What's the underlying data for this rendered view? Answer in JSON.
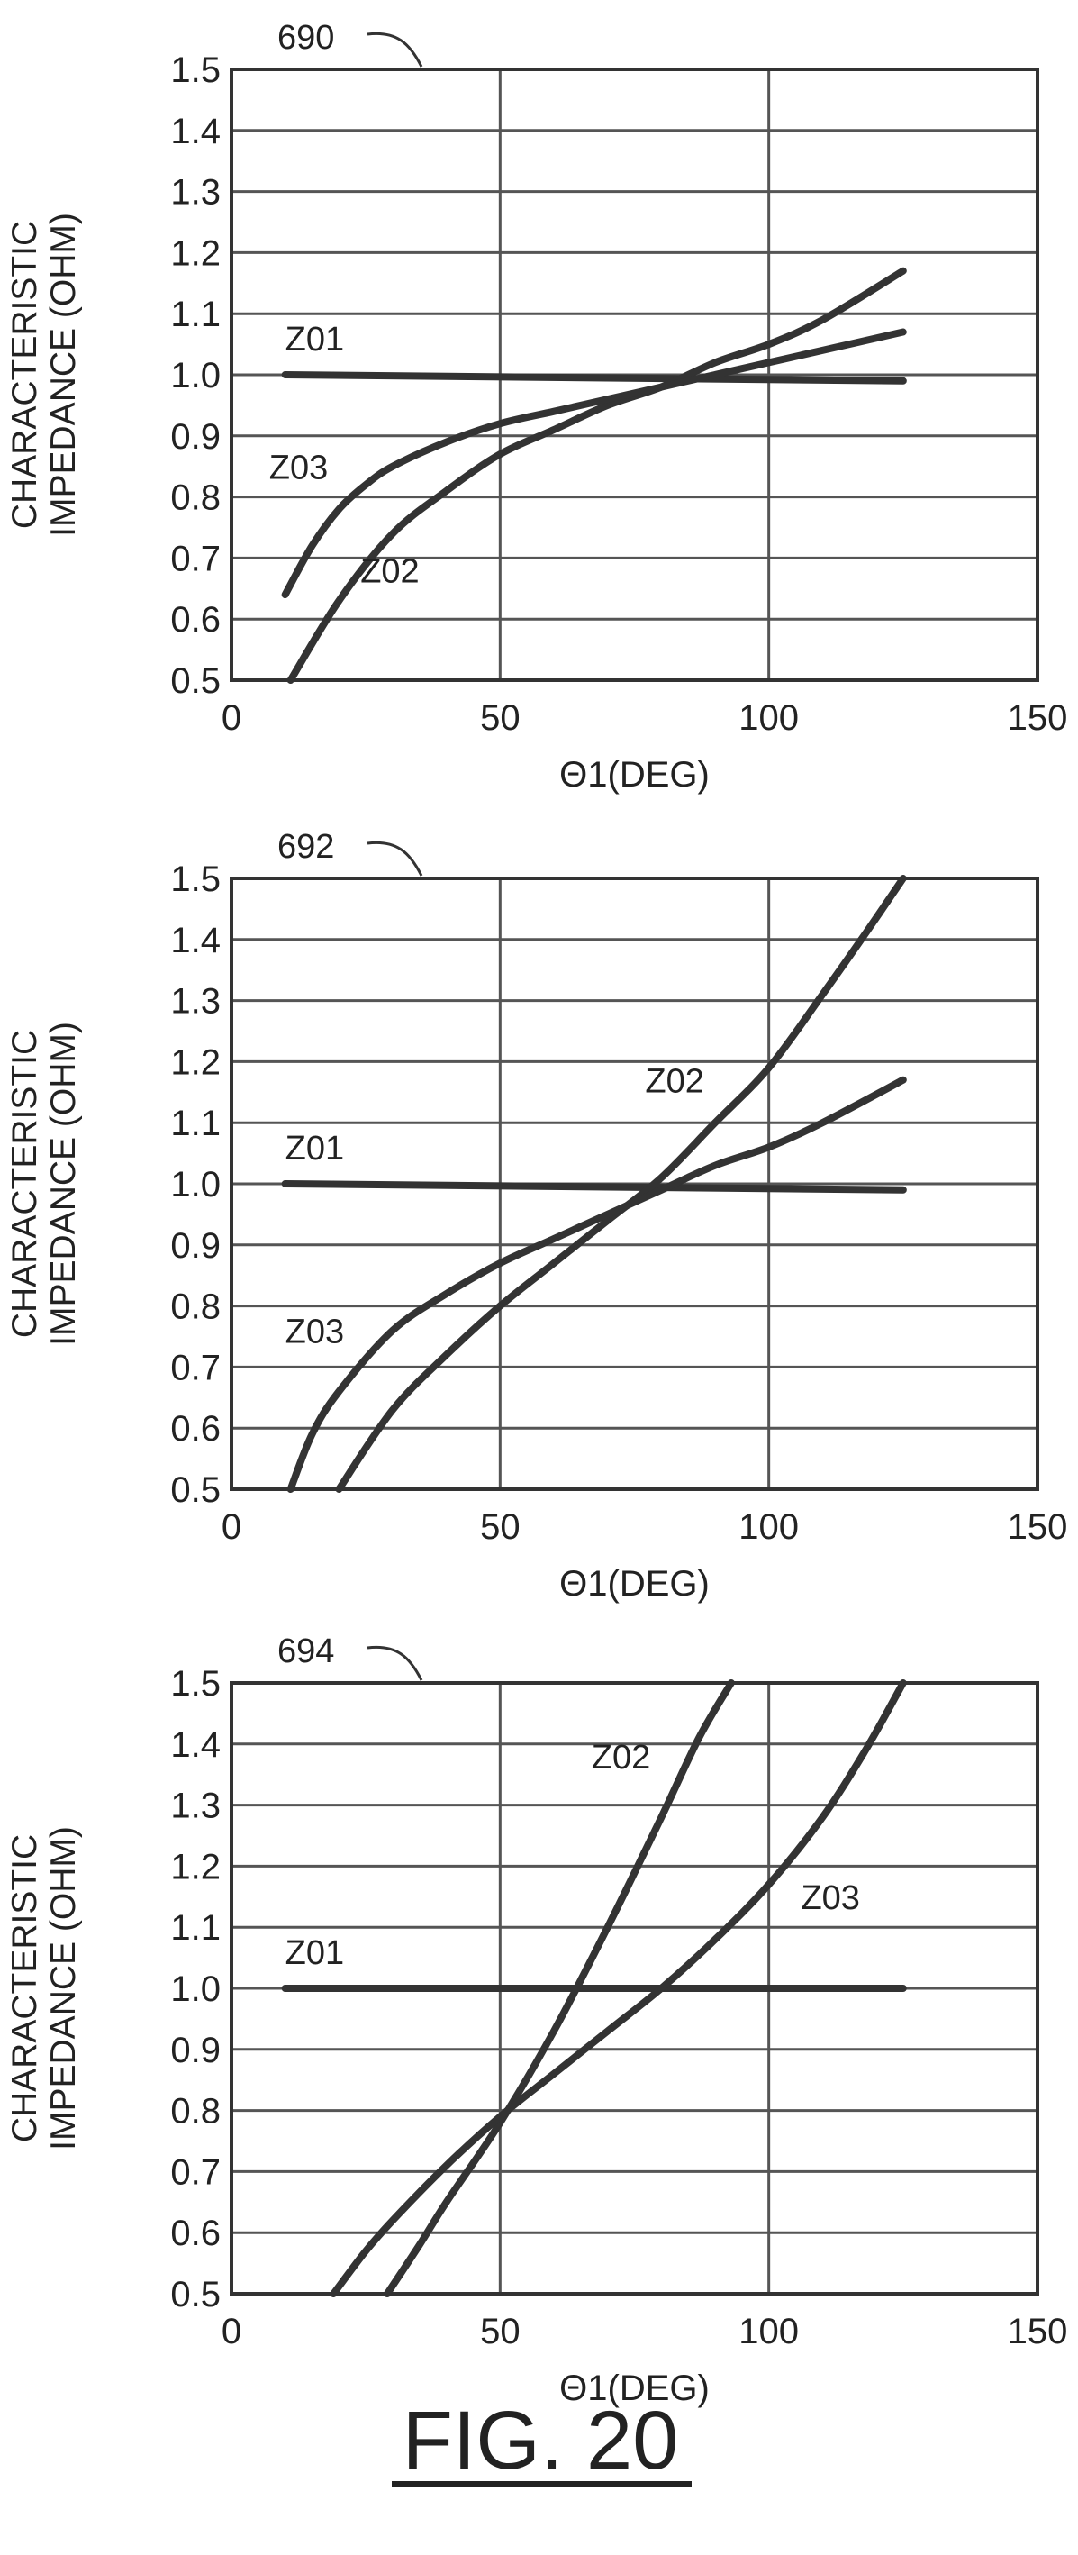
{
  "figure": {
    "title": "FIG. 20"
  },
  "chart_data": [
    {
      "type": "line",
      "title": "690",
      "xlabel": "Θ1(DEG)",
      "ylabel": "CHARACTERISTIC IMPEDANCE (OHM)",
      "xlim": [
        0,
        150
      ],
      "ylim": [
        0.5,
        1.5
      ],
      "xticks": [
        "0",
        "50",
        "100",
        "150"
      ],
      "yticks": [
        "0.5",
        "0.6",
        "0.7",
        "0.8",
        "0.9",
        "1.0",
        "1.1",
        "1.2",
        "1.3",
        "1.4",
        "1.5"
      ],
      "grid": true,
      "series": [
        {
          "name": "Z01",
          "x": [
            10,
            125
          ],
          "values": [
            1.0,
            0.99
          ]
        },
        {
          "name": "Z02",
          "x": [
            11,
            20,
            30,
            40,
            50,
            60,
            70,
            80,
            90,
            100,
            110,
            125
          ],
          "values": [
            0.5,
            0.63,
            0.74,
            0.81,
            0.87,
            0.91,
            0.95,
            0.98,
            1.02,
            1.05,
            1.09,
            1.17
          ]
        },
        {
          "name": "Z03",
          "x": [
            10,
            15,
            20,
            25,
            30,
            40,
            50,
            60,
            70,
            80,
            90,
            100,
            110,
            125
          ],
          "values": [
            0.64,
            0.72,
            0.78,
            0.82,
            0.85,
            0.89,
            0.92,
            0.94,
            0.96,
            0.98,
            1.0,
            1.02,
            1.04,
            1.07
          ]
        }
      ]
    },
    {
      "type": "line",
      "title": "692",
      "xlabel": "Θ1(DEG)",
      "ylabel": "CHARACTERISTIC IMPEDANCE (OHM)",
      "xlim": [
        0,
        150
      ],
      "ylim": [
        0.5,
        1.5
      ],
      "xticks": [
        "0",
        "50",
        "100",
        "150"
      ],
      "yticks": [
        "0.5",
        "0.6",
        "0.7",
        "0.8",
        "0.9",
        "1.0",
        "1.1",
        "1.2",
        "1.3",
        "1.4",
        "1.5"
      ],
      "grid": true,
      "series": [
        {
          "name": "Z01",
          "x": [
            10,
            125
          ],
          "values": [
            1.0,
            0.99
          ]
        },
        {
          "name": "Z02",
          "x": [
            20,
            30,
            40,
            50,
            60,
            70,
            80,
            90,
            100,
            110,
            118,
            125
          ],
          "values": [
            0.5,
            0.63,
            0.72,
            0.8,
            0.87,
            0.94,
            1.01,
            1.1,
            1.19,
            1.31,
            1.41,
            1.5
          ]
        },
        {
          "name": "Z03",
          "x": [
            11,
            15,
            20,
            30,
            40,
            50,
            60,
            70,
            80,
            90,
            100,
            110,
            125
          ],
          "values": [
            0.5,
            0.59,
            0.66,
            0.76,
            0.82,
            0.87,
            0.91,
            0.95,
            0.99,
            1.03,
            1.06,
            1.1,
            1.17
          ]
        }
      ]
    },
    {
      "type": "line",
      "title": "694",
      "xlabel": "Θ1(DEG)",
      "ylabel": "CHARACTERISTIC IMPEDANCE (OHM)",
      "xlim": [
        0,
        150
      ],
      "ylim": [
        0.5,
        1.5
      ],
      "xticks": [
        "0",
        "50",
        "100",
        "150"
      ],
      "yticks": [
        "0.5",
        "0.6",
        "0.7",
        "0.8",
        "0.9",
        "1.0",
        "1.1",
        "1.2",
        "1.3",
        "1.4",
        "1.5"
      ],
      "grid": true,
      "series": [
        {
          "name": "Z01",
          "x": [
            10,
            125
          ],
          "values": [
            1.0,
            1.0
          ]
        },
        {
          "name": "Z02",
          "x": [
            29,
            35,
            40,
            50,
            60,
            70,
            80,
            87,
            93
          ],
          "values": [
            0.5,
            0.58,
            0.65,
            0.78,
            0.93,
            1.1,
            1.28,
            1.41,
            1.5
          ]
        },
        {
          "name": "Z03",
          "x": [
            19,
            25,
            30,
            40,
            50,
            60,
            70,
            80,
            90,
            100,
            110,
            118,
            125
          ],
          "values": [
            0.5,
            0.57,
            0.62,
            0.71,
            0.79,
            0.86,
            0.93,
            1.0,
            1.08,
            1.17,
            1.28,
            1.39,
            1.5
          ]
        }
      ]
    }
  ],
  "series_labels": [
    [
      {
        "text": "Z01",
        "x": 10,
        "y": 1.04
      },
      {
        "text": "Z03",
        "x": 7,
        "y": 0.83
      },
      {
        "text": "Z02",
        "x": 24,
        "y": 0.66
      }
    ],
    [
      {
        "text": "Z01",
        "x": 10,
        "y": 1.04
      },
      {
        "text": "Z02",
        "x": 77,
        "y": 1.15
      },
      {
        "text": "Z03",
        "x": 10,
        "y": 0.74
      }
    ],
    [
      {
        "text": "Z01",
        "x": 10,
        "y": 1.04
      },
      {
        "text": "Z02",
        "x": 67,
        "y": 1.36
      },
      {
        "text": "Z03",
        "x": 106,
        "y": 1.13
      }
    ]
  ]
}
